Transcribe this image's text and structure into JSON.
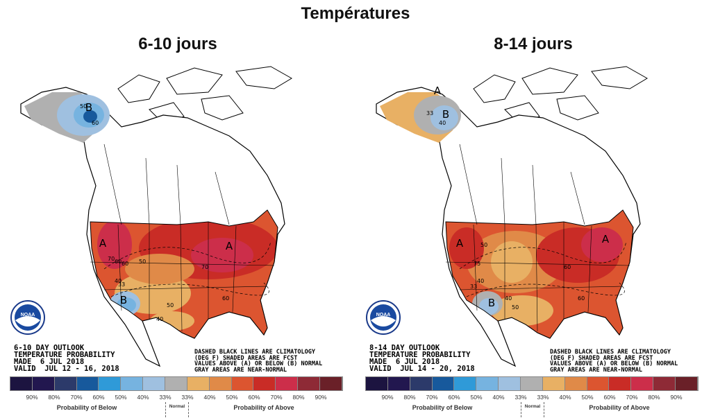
{
  "title": "Températures",
  "colors": {
    "scale": [
      "#1c1440",
      "#22174f",
      "#2c3a6a",
      "#17599c",
      "#2f9ad8",
      "#76b3e0",
      "#9fc0e0",
      "#b0b0b0",
      "#e8b064",
      "#e08a48",
      "#dc5530",
      "#c92c26",
      "#cc2e4a",
      "#8e2a36",
      "#6a2028"
    ]
  },
  "legend": {
    "ticks": [
      "90%",
      "80%",
      "70%",
      "60%",
      "50%",
      "40%",
      "33%",
      "33%",
      "40%",
      "50%",
      "60%",
      "70%",
      "80%",
      "90%"
    ],
    "below_label": "Probability of Below",
    "normal_label": "Normal",
    "above_label": "Probability of Above"
  },
  "logo_text": "NOAA",
  "note": "DASHED BLACK LINES ARE CLIMATOLOGY\n(DEG F) SHADED AREAS ARE FCST\nVALUES ABOVE (A) OR BELOW (B) NORMAL\nGRAY AREAS ARE NEAR-NORMAL",
  "panels": [
    {
      "title": "6-10 jours",
      "info": [
        "6-10 DAY OUTLOOK",
        "TEMPERATURE PROBABILITY",
        "MADE  6 JUL 2018",
        "VALID  JUL 12 - 16, 2018"
      ],
      "markers": [
        "B",
        "A",
        "A",
        "B"
      ],
      "contours": [
        "50",
        "60",
        "70",
        "60",
        "70",
        "50",
        "60",
        "40",
        "33",
        "50",
        "40",
        "60"
      ]
    },
    {
      "title": "8-14 jours",
      "info": [
        "8-14 DAY OUTLOOK",
        "TEMPERATURE PROBABILITY",
        "MADE  6 JUL 2018",
        "VALID  JUL 14 - 20, 2018"
      ],
      "markers": [
        "A",
        "B",
        "A",
        "A",
        "B"
      ],
      "contours": [
        "33",
        "40",
        "50",
        "75",
        "60",
        "40",
        "33",
        "40",
        "50",
        "60"
      ]
    }
  ]
}
